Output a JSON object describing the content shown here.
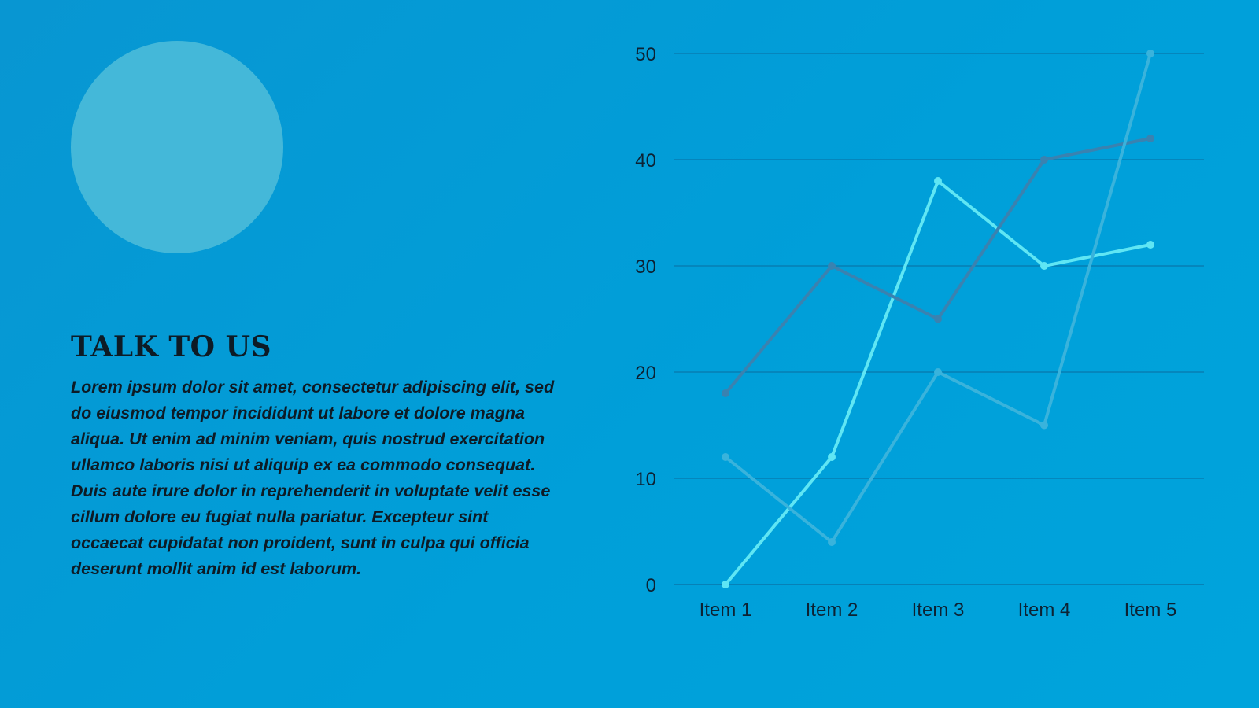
{
  "slide": {
    "title": "TALK TO US",
    "body": "Lorem ipsum dolor sit amet, consectetur adipiscing elit, sed do eiusmod tempor incididunt ut labore et dolore magna aliqua. Ut enim ad minim veniam, quis nostrud exercitation ullamco laboris nisi ut aliquip ex ea commodo consequat. Duis aute irure dolor in reprehenderit in voluptate velit esse cillum dolore eu fugiat nulla pariatur. Excepteur sint occaecat cupidatat non proident, sunt in culpa qui officia deserunt mollit anim id est laborum."
  },
  "colors": {
    "background": "#009fd9",
    "circle": "#44b8d9",
    "text": "#0d1b26",
    "gridline": "#0877ab"
  },
  "chart_data": {
    "type": "line",
    "categories": [
      "Item 1",
      "Item 2",
      "Item 3",
      "Item 4",
      "Item 5"
    ],
    "y_ticks": [
      "0",
      "10",
      "20",
      "30",
      "40",
      "50"
    ],
    "ylim": [
      0,
      50
    ],
    "grid": true,
    "legend": "none",
    "series": [
      {
        "values": [
          0,
          12,
          38,
          30,
          32
        ],
        "color": "#5fe6f4"
      },
      {
        "values": [
          18,
          30,
          25,
          40,
          42
        ],
        "color": "#3a82b0"
      },
      {
        "values": [
          12,
          4,
          20,
          15,
          50
        ],
        "color": "#39b3dc"
      }
    ]
  }
}
